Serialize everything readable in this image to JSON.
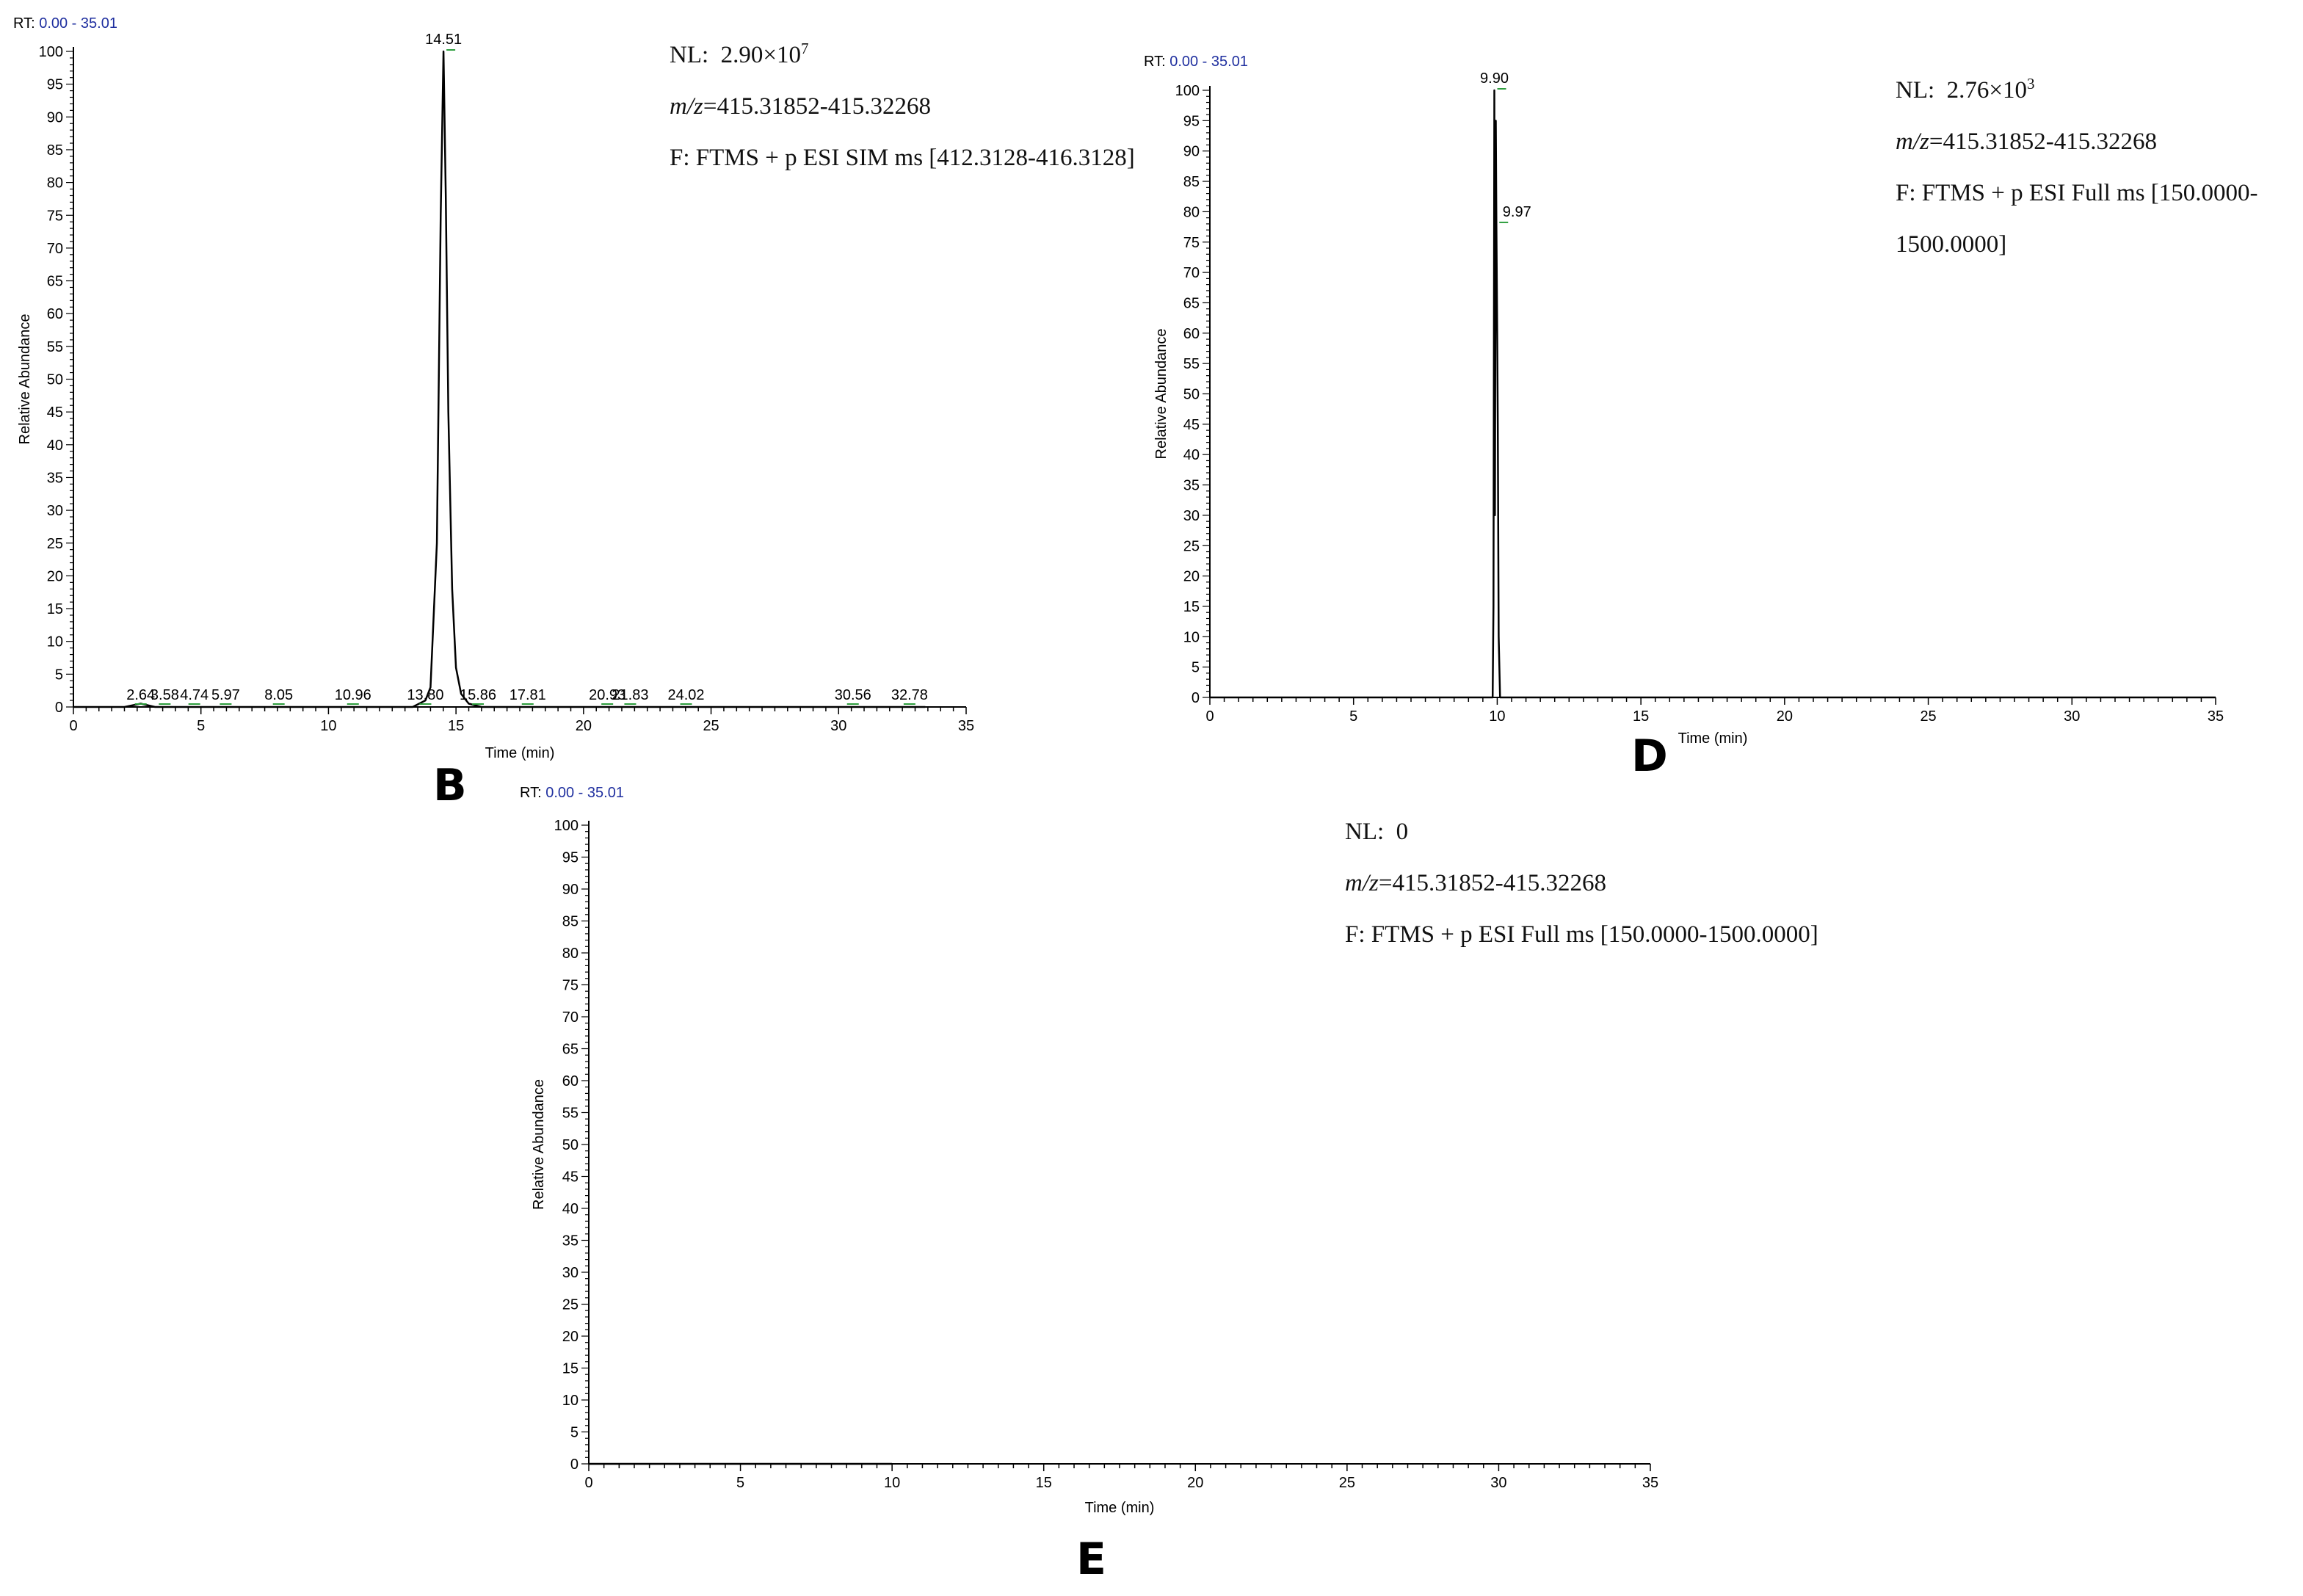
{
  "chart_data": [
    {
      "type": "line",
      "panel_label": "B",
      "rt_label": "RT:",
      "rt_range": "0.00 - 35.01",
      "xlabel": "Time (min)",
      "ylabel": "Relative Abundance",
      "xlim": [
        0,
        35
      ],
      "ylim": [
        0,
        100
      ],
      "x_ticks": [
        0,
        5,
        10,
        15,
        20,
        25,
        30,
        35
      ],
      "y_ticks": [
        0,
        5,
        10,
        15,
        20,
        25,
        30,
        35,
        40,
        45,
        50,
        55,
        60,
        65,
        70,
        75,
        80,
        85,
        90,
        95,
        100
      ],
      "nl_label": "NL:",
      "nl_mantissa": "2.90×10",
      "nl_exp": "7",
      "mz_label": "m/z",
      "mz_value": "=415.31852-415.32268",
      "filter": "F: FTMS + p ESI SIM ms [412.3128-416.3128]",
      "filter_cont": "",
      "series": [
        {
          "x": [
            0,
            2.0,
            2.64,
            3.2,
            13.3,
            13.8,
            14.0,
            14.25,
            14.4,
            14.51,
            14.6,
            14.7,
            14.85,
            15.0,
            15.2,
            15.5,
            16.0,
            33.4
          ],
          "y": [
            0,
            0,
            0.5,
            0,
            0,
            1.0,
            3.0,
            25.0,
            75.0,
            100.0,
            78.0,
            45.0,
            18.0,
            6.0,
            2.0,
            0.5,
            0,
            0
          ]
        }
      ],
      "peak_labels": [
        {
          "x": 2.64,
          "y": 0,
          "text": "2.64"
        },
        {
          "x": 3.58,
          "y": 0,
          "text": "3.58"
        },
        {
          "x": 4.74,
          "y": 0,
          "text": "4.74"
        },
        {
          "x": 5.97,
          "y": 0,
          "text": "5.97"
        },
        {
          "x": 8.05,
          "y": 0,
          "text": "8.05"
        },
        {
          "x": 10.96,
          "y": 0,
          "text": "10.96"
        },
        {
          "x": 13.8,
          "y": 0,
          "text": "13.80"
        },
        {
          "x": 14.51,
          "y": 100,
          "text": "14.51"
        },
        {
          "x": 15.86,
          "y": 0,
          "text": "15.86"
        },
        {
          "x": 17.81,
          "y": 0,
          "text": "17.81"
        },
        {
          "x": 20.93,
          "y": 0,
          "text": "20.93"
        },
        {
          "x": 21.83,
          "y": 0,
          "text": "21.83"
        },
        {
          "x": 24.02,
          "y": 0,
          "text": "24.02"
        },
        {
          "x": 30.56,
          "y": 0,
          "text": "30.56"
        },
        {
          "x": 32.78,
          "y": 0,
          "text": "32.78"
        }
      ]
    },
    {
      "type": "line",
      "panel_label": "D",
      "rt_label": "RT:",
      "rt_range": "0.00 - 35.01",
      "xlabel": "Time (min)",
      "ylabel": "Relative Abundance",
      "xlim": [
        0,
        35
      ],
      "ylim": [
        0,
        100
      ],
      "x_ticks": [
        0,
        5,
        10,
        15,
        20,
        25,
        30,
        35
      ],
      "y_ticks": [
        0,
        5,
        10,
        15,
        20,
        25,
        30,
        35,
        40,
        45,
        50,
        55,
        60,
        65,
        70,
        75,
        80,
        85,
        90,
        95,
        100
      ],
      "nl_label": "NL:",
      "nl_mantissa": "2.76×10",
      "nl_exp": "3",
      "mz_label": "m/z",
      "mz_value": "=415.31852-415.32268",
      "filter": "F: FTMS + p ESI Full ms [150.0000-",
      "filter_cont": "1500.0000]",
      "series": [
        {
          "x": [
            0,
            9.84,
            9.87,
            9.9,
            9.92,
            9.95,
            9.97,
            10.0,
            10.02,
            10.05,
            10.1,
            35
          ],
          "y": [
            0,
            0,
            15,
            100,
            30,
            95,
            78,
            60,
            45,
            10,
            0,
            0
          ]
        }
      ],
      "peak_labels": [
        {
          "x": 9.9,
          "y": 100,
          "text": "9.90"
        },
        {
          "x": 9.97,
          "y": 78,
          "text": "9.97"
        }
      ]
    },
    {
      "type": "line",
      "panel_label": "E",
      "rt_label": "RT:",
      "rt_range": "0.00 - 35.01",
      "xlabel": "Time (min)",
      "ylabel": "Relative Abundance",
      "xlim": [
        0,
        35
      ],
      "ylim": [
        0,
        100
      ],
      "x_ticks": [
        0,
        5,
        10,
        15,
        20,
        25,
        30,
        35
      ],
      "y_ticks": [
        0,
        5,
        10,
        15,
        20,
        25,
        30,
        35,
        40,
        45,
        50,
        55,
        60,
        65,
        70,
        75,
        80,
        85,
        90,
        95,
        100
      ],
      "nl_label": "NL:",
      "nl_mantissa": "0",
      "nl_exp": "",
      "mz_label": "m/z",
      "mz_value": "=415.31852-415.32268",
      "filter": "F: FTMS + p ESI Full ms [150.0000-1500.0000]",
      "filter_cont": "",
      "series": [
        {
          "x": [
            0,
            10
          ],
          "y": [
            0,
            0
          ]
        }
      ],
      "peak_labels": []
    }
  ]
}
